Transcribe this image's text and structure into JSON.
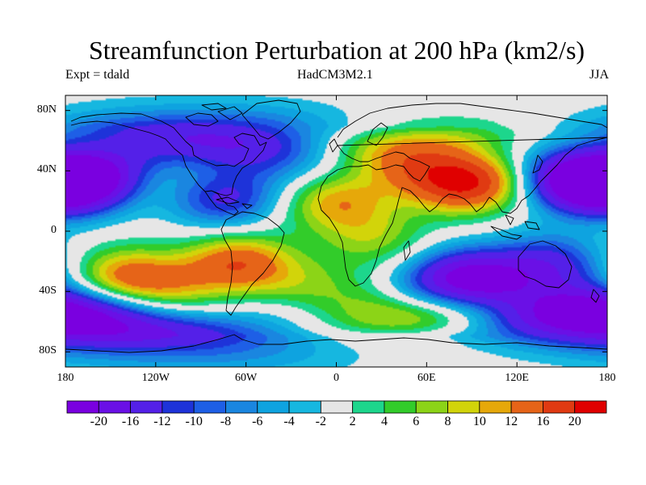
{
  "title": "Streamfunction Perturbation at 200 hPa (km2/s)",
  "subtitle_left": "Expt = tdald",
  "subtitle_center": "HadCM3M2.1",
  "subtitle_right": "JJA",
  "map": {
    "projection": "cylindrical-equidistant",
    "lon_range": [
      -180,
      180
    ],
    "lat_range": [
      -90,
      90
    ],
    "background_color": "#e6e6e6",
    "lon_ticks": [
      {
        "value": -180,
        "label": "180"
      },
      {
        "value": -120,
        "label": "120W"
      },
      {
        "value": -60,
        "label": "60W"
      },
      {
        "value": 0,
        "label": "0"
      },
      {
        "value": 60,
        "label": "60E"
      },
      {
        "value": 120,
        "label": "120E"
      },
      {
        "value": 180,
        "label": "180"
      }
    ],
    "lat_ticks": [
      {
        "value": 80,
        "label": "80N"
      },
      {
        "value": 40,
        "label": "40N"
      },
      {
        "value": 0,
        "label": "0"
      },
      {
        "value": -40,
        "label": "40S"
      },
      {
        "value": -80,
        "label": "80S"
      }
    ]
  },
  "chart_data": {
    "type": "heatmap",
    "title": "Streamfunction Perturbation at 200 hPa (km2/s)",
    "variable": "streamfunction perturbation",
    "units": "km2/s",
    "level_hPa": 200,
    "season": "JJA",
    "experiment": "tdald",
    "model": "HadCM3M2.1",
    "features": [
      {
        "name": "western-pacific-low-north",
        "lon": -172,
        "lat": 32,
        "peak": -20
      },
      {
        "name": "east-asia-pacific-low-north",
        "lon": 165,
        "lat": 33,
        "peak": -20
      },
      {
        "name": "caribbean-low",
        "lon": -75,
        "lat": 22,
        "peak": -12
      },
      {
        "name": "north-america-low",
        "lon": -85,
        "lat": 52,
        "peak": -8
      },
      {
        "name": "greenland-low",
        "lon": -50,
        "lat": 65,
        "peak": -8
      },
      {
        "name": "north-atlantic-low",
        "lon": -30,
        "lat": 47,
        "peak": -4
      },
      {
        "name": "north-pacific-low",
        "lon": -150,
        "lat": 62,
        "peak": -4
      },
      {
        "name": "indian-ocean-low",
        "lon": 85,
        "lat": -32,
        "peak": -20
      },
      {
        "name": "australia-east-low",
        "lon": 140,
        "lat": -22,
        "peak": -12
      },
      {
        "name": "south-pacific-low",
        "lon": -175,
        "lat": -55,
        "peak": -10
      },
      {
        "name": "new-zealand-low",
        "lon": 170,
        "lat": -56,
        "peak": -16
      },
      {
        "name": "south-america-low",
        "lon": -45,
        "lat": -63,
        "peak": -6
      },
      {
        "name": "antarctic-coast-low",
        "lon": -80,
        "lat": -80,
        "peak": -4
      },
      {
        "name": "tibetan-high",
        "lon": 85,
        "lat": 33,
        "peak": 20
      },
      {
        "name": "siberian-high",
        "lon": 40,
        "lat": 58,
        "peak": 10
      },
      {
        "name": "north-africa-high",
        "lon": 0,
        "lat": 20,
        "peak": 10
      },
      {
        "name": "east-africa-high",
        "lon": 25,
        "lat": -5,
        "peak": 6
      },
      {
        "name": "south-pacific-high",
        "lon": -138,
        "lat": -32,
        "peak": 14
      },
      {
        "name": "south-america-high",
        "lon": -65,
        "lat": -22,
        "peak": 14
      },
      {
        "name": "southern-ocean-high",
        "lon": 45,
        "lat": -58,
        "peak": 10
      },
      {
        "name": "north-pacific-high",
        "lon": -107,
        "lat": 40,
        "peak": 6
      },
      {
        "name": "south-atlantic-high",
        "lon": -10,
        "lat": -40,
        "peak": 4
      }
    ],
    "colorbar": {
      "levels": [
        -20,
        -16,
        -12,
        -10,
        -8,
        -6,
        -4,
        -2,
        2,
        4,
        6,
        8,
        10,
        12,
        16,
        20
      ],
      "labels": [
        "-20",
        "-16",
        "-12",
        "-10",
        "-8",
        "-6",
        "-4",
        "-2",
        "2",
        "4",
        "6",
        "8",
        "10",
        "12",
        "16",
        "20"
      ],
      "colors": [
        "#7a00e0",
        "#6a10e6",
        "#5420e8",
        "#1e33d9",
        "#1e5fe6",
        "#1a86e0",
        "#0ea3e0",
        "#16b7e0",
        "#e6e6e6",
        "#1dd68c",
        "#32cc2a",
        "#8cd417",
        "#d2d40a",
        "#e6a80a",
        "#e66418",
        "#e03a12",
        "#e00000"
      ]
    }
  }
}
